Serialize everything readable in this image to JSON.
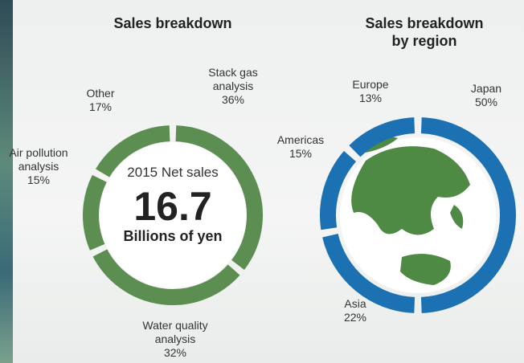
{
  "chart_data": [
    {
      "type": "donut",
      "title": "Sales breakdown",
      "categories": [
        "Stack gas analysis",
        "Water quality analysis",
        "Air pollution analysis",
        "Other"
      ],
      "values": [
        36,
        32,
        15,
        17
      ],
      "value_labels": [
        "36%",
        "32%",
        "15%",
        "17%"
      ],
      "color": "#5b8e50",
      "center_label": "2015 Net sales",
      "center_value": 16.7,
      "center_unit": "Billions of yen"
    },
    {
      "type": "donut",
      "title": "Sales breakdown by region",
      "categories": [
        "Japan",
        "Asia",
        "Americas",
        "Europe"
      ],
      "values": [
        50,
        22,
        15,
        13
      ],
      "value_labels": [
        "50%",
        "22%",
        "15%",
        "13%"
      ],
      "color": "#1b71b2"
    }
  ]
}
